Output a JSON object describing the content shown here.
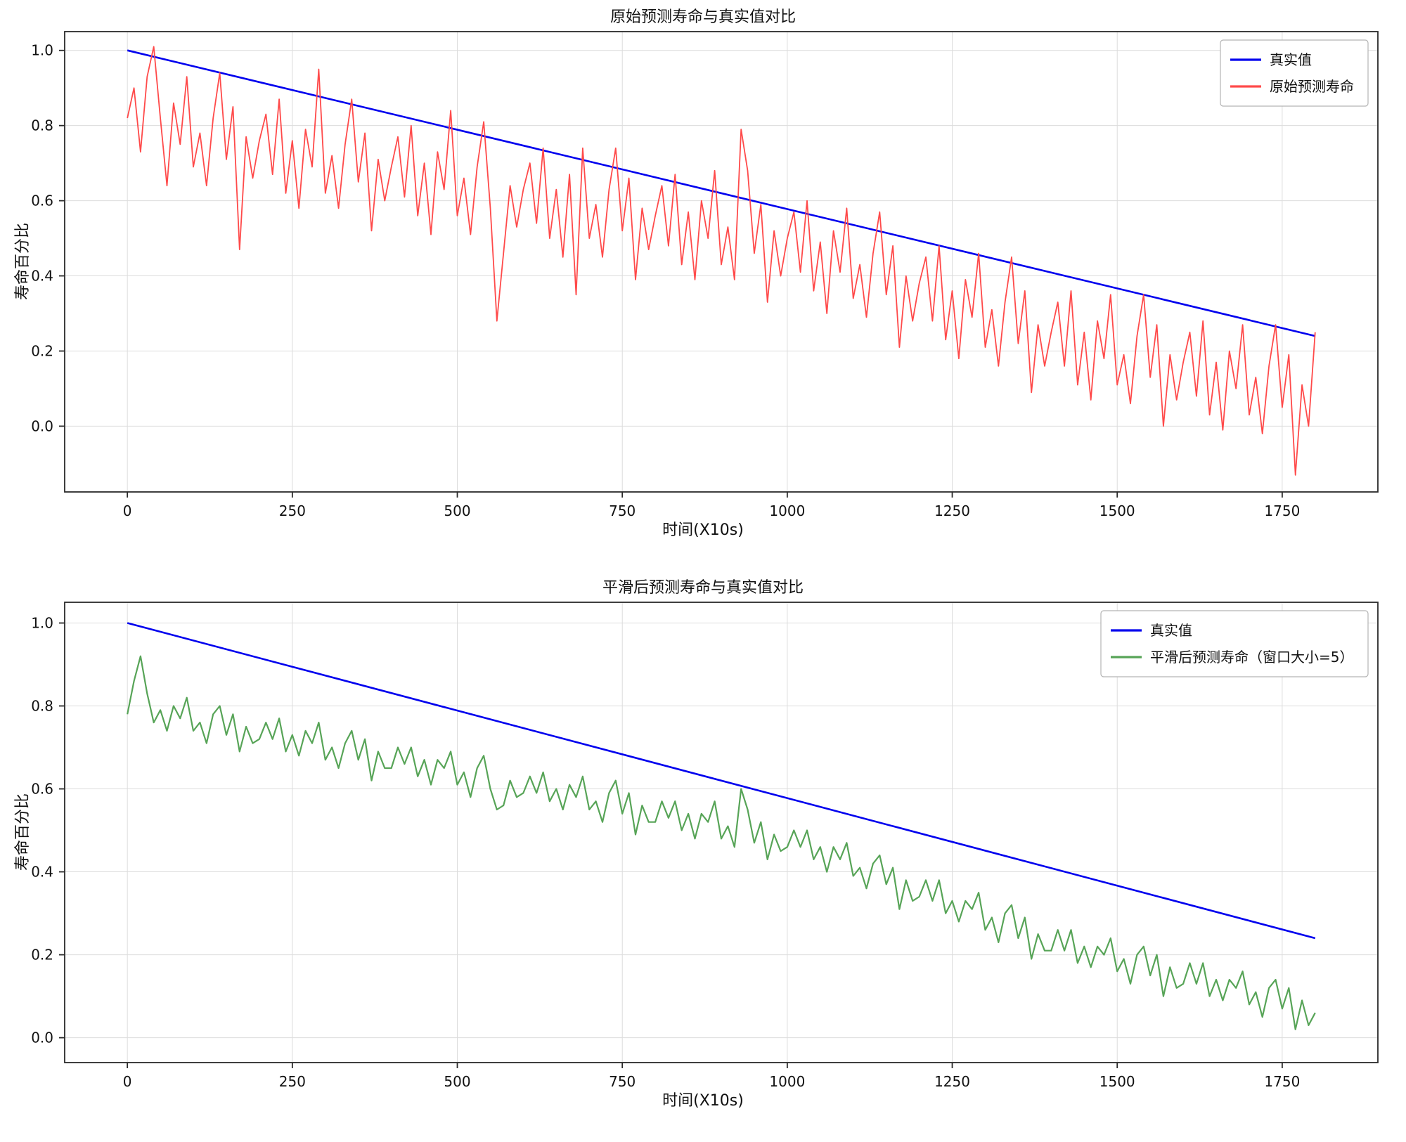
{
  "chart_data": [
    {
      "type": "line",
      "title": "原始预测寿命与真实值对比",
      "xlabel": "时间(X10s)",
      "ylabel": "寿命百分比",
      "xlim": [
        -95,
        1895
      ],
      "ylim": [
        -0.175,
        1.05
      ],
      "grid": true,
      "legend_loc": "upper right",
      "xticks": [
        0,
        250,
        500,
        750,
        1000,
        1250,
        1500,
        1750
      ],
      "xtick_labels": [
        "0",
        "250",
        "500",
        "750",
        "1000",
        "1250",
        "1500",
        "1750"
      ],
      "yticks": [
        0.0,
        0.2,
        0.4,
        0.6,
        0.8,
        1.0
      ],
      "ytick_labels": [
        "0.0",
        "0.2",
        "0.4",
        "0.6",
        "0.8",
        "1.0"
      ],
      "series": [
        {
          "name": "真实值",
          "color": "#0000ee",
          "width": 2.6,
          "x": [
            0,
            1800
          ],
          "y": [
            1.0,
            0.24
          ]
        },
        {
          "name": "原始预测寿命",
          "color": "#ff4a4a",
          "width": 1.8,
          "x0": 0,
          "dx": 10,
          "y": [
            0.82,
            0.9,
            0.73,
            0.93,
            1.01,
            0.82,
            0.64,
            0.86,
            0.75,
            0.93,
            0.69,
            0.78,
            0.64,
            0.82,
            0.94,
            0.71,
            0.85,
            0.47,
            0.77,
            0.66,
            0.76,
            0.83,
            0.67,
            0.87,
            0.62,
            0.76,
            0.58,
            0.79,
            0.69,
            0.95,
            0.62,
            0.72,
            0.58,
            0.75,
            0.87,
            0.65,
            0.78,
            0.52,
            0.71,
            0.6,
            0.69,
            0.77,
            0.61,
            0.8,
            0.56,
            0.7,
            0.51,
            0.73,
            0.63,
            0.84,
            0.56,
            0.66,
            0.51,
            0.69,
            0.81,
            0.58,
            0.28,
            0.46,
            0.64,
            0.53,
            0.63,
            0.7,
            0.54,
            0.74,
            0.5,
            0.63,
            0.45,
            0.67,
            0.35,
            0.74,
            0.5,
            0.59,
            0.45,
            0.63,
            0.74,
            0.52,
            0.66,
            0.39,
            0.58,
            0.47,
            0.56,
            0.64,
            0.48,
            0.67,
            0.43,
            0.57,
            0.39,
            0.6,
            0.5,
            0.68,
            0.43,
            0.53,
            0.39,
            0.79,
            0.68,
            0.46,
            0.59,
            0.33,
            0.52,
            0.4,
            0.5,
            0.57,
            0.41,
            0.6,
            0.36,
            0.49,
            0.3,
            0.52,
            0.41,
            0.58,
            0.34,
            0.43,
            0.29,
            0.46,
            0.57,
            0.35,
            0.48,
            0.21,
            0.4,
            0.28,
            0.38,
            0.45,
            0.28,
            0.48,
            0.23,
            0.36,
            0.18,
            0.39,
            0.29,
            0.46,
            0.21,
            0.31,
            0.16,
            0.33,
            0.45,
            0.22,
            0.36,
            0.09,
            0.27,
            0.16,
            0.25,
            0.33,
            0.16,
            0.36,
            0.11,
            0.25,
            0.07,
            0.28,
            0.18,
            0.35,
            0.11,
            0.19,
            0.06,
            0.24,
            0.35,
            0.13,
            0.27,
            0.0,
            0.19,
            0.07,
            0.17,
            0.25,
            0.08,
            0.28,
            0.03,
            0.17,
            -0.01,
            0.2,
            0.1,
            0.27,
            0.03,
            0.13,
            -0.02,
            0.16,
            0.27,
            0.05,
            0.19,
            -0.13,
            0.11,
            0.0,
            0.25
          ]
        }
      ]
    },
    {
      "type": "line",
      "title": "平滑后预测寿命与真实值对比",
      "xlabel": "时间(X10s)",
      "ylabel": "寿命百分比",
      "xlim": [
        -95,
        1895
      ],
      "ylim": [
        -0.06,
        1.05
      ],
      "grid": true,
      "legend_loc": "upper right",
      "xticks": [
        0,
        250,
        500,
        750,
        1000,
        1250,
        1500,
        1750
      ],
      "xtick_labels": [
        "0",
        "250",
        "500",
        "750",
        "1000",
        "1250",
        "1500",
        "1750"
      ],
      "yticks": [
        0.0,
        0.2,
        0.4,
        0.6,
        0.8,
        1.0
      ],
      "ytick_labels": [
        "0.0",
        "0.2",
        "0.4",
        "0.6",
        "0.8",
        "1.0"
      ],
      "series": [
        {
          "name": "真实值",
          "color": "#0000ee",
          "width": 2.6,
          "x": [
            0,
            1800
          ],
          "y": [
            1.0,
            0.24
          ]
        },
        {
          "name": "平滑后预测寿命（窗口大小=5）",
          "color": "#57a457",
          "width": 2.2,
          "x0": 0,
          "dx": 10,
          "y": [
            0.78,
            0.86,
            0.92,
            0.83,
            0.76,
            0.79,
            0.74,
            0.8,
            0.77,
            0.82,
            0.74,
            0.76,
            0.71,
            0.78,
            0.8,
            0.73,
            0.78,
            0.69,
            0.75,
            0.71,
            0.72,
            0.76,
            0.72,
            0.77,
            0.69,
            0.73,
            0.68,
            0.74,
            0.71,
            0.76,
            0.67,
            0.7,
            0.65,
            0.71,
            0.74,
            0.67,
            0.72,
            0.62,
            0.69,
            0.65,
            0.65,
            0.7,
            0.66,
            0.7,
            0.63,
            0.67,
            0.61,
            0.67,
            0.65,
            0.69,
            0.61,
            0.64,
            0.58,
            0.65,
            0.68,
            0.6,
            0.55,
            0.56,
            0.62,
            0.58,
            0.59,
            0.63,
            0.59,
            0.64,
            0.57,
            0.6,
            0.55,
            0.61,
            0.58,
            0.63,
            0.55,
            0.57,
            0.52,
            0.59,
            0.62,
            0.54,
            0.59,
            0.49,
            0.56,
            0.52,
            0.52,
            0.57,
            0.53,
            0.57,
            0.5,
            0.54,
            0.48,
            0.54,
            0.52,
            0.57,
            0.48,
            0.51,
            0.46,
            0.6,
            0.55,
            0.47,
            0.52,
            0.43,
            0.49,
            0.45,
            0.46,
            0.5,
            0.46,
            0.5,
            0.43,
            0.46,
            0.4,
            0.46,
            0.43,
            0.47,
            0.39,
            0.41,
            0.36,
            0.42,
            0.44,
            0.37,
            0.41,
            0.31,
            0.38,
            0.33,
            0.34,
            0.38,
            0.33,
            0.38,
            0.3,
            0.33,
            0.28,
            0.33,
            0.31,
            0.35,
            0.26,
            0.29,
            0.23,
            0.3,
            0.32,
            0.24,
            0.29,
            0.19,
            0.25,
            0.21,
            0.21,
            0.26,
            0.21,
            0.26,
            0.18,
            0.22,
            0.17,
            0.22,
            0.2,
            0.24,
            0.16,
            0.19,
            0.13,
            0.2,
            0.22,
            0.15,
            0.2,
            0.1,
            0.17,
            0.12,
            0.13,
            0.18,
            0.13,
            0.18,
            0.1,
            0.14,
            0.09,
            0.14,
            0.12,
            0.16,
            0.08,
            0.11,
            0.05,
            0.12,
            0.14,
            0.07,
            0.12,
            0.02,
            0.09,
            0.03,
            0.06
          ]
        }
      ]
    }
  ]
}
